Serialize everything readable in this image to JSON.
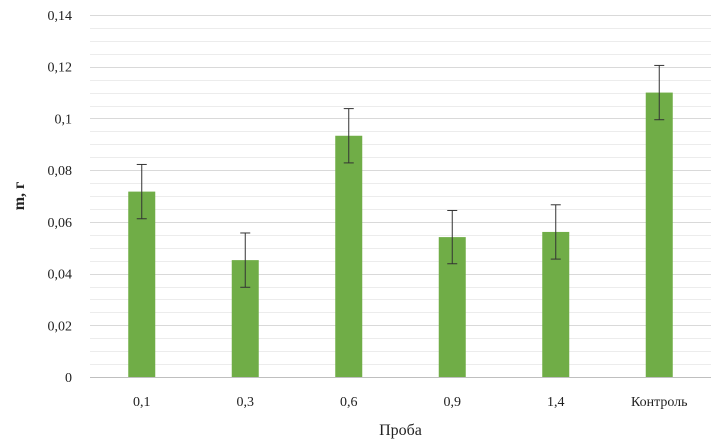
{
  "chart_data": {
    "type": "bar",
    "title": "",
    "xlabel": "Проба",
    "ylabel": "m, г",
    "categories": [
      "0,1",
      "0,3",
      "0,6",
      "0,9",
      "1,4",
      "Контроль"
    ],
    "values": [
      0.0717,
      0.0452,
      0.0933,
      0.0541,
      0.0561,
      0.11
    ],
    "error": [
      0.0105,
      0.0105,
      0.0105,
      0.0103,
      0.0105,
      0.0105
    ],
    "ylim": [
      0,
      0.14
    ],
    "yticks": [
      0,
      0.02,
      0.04,
      0.06,
      0.08,
      0.1,
      0.12,
      0.14
    ],
    "ytick_labels": [
      "0",
      "0,02",
      "0,04",
      "0,06",
      "0,08",
      "0,1",
      "0,12",
      "0,14"
    ],
    "minor_step": 0.005,
    "grid": true,
    "legend": "none",
    "bar_color": "#70ad47",
    "error_color": "#333333",
    "grid_color": "#d9d9d9"
  }
}
